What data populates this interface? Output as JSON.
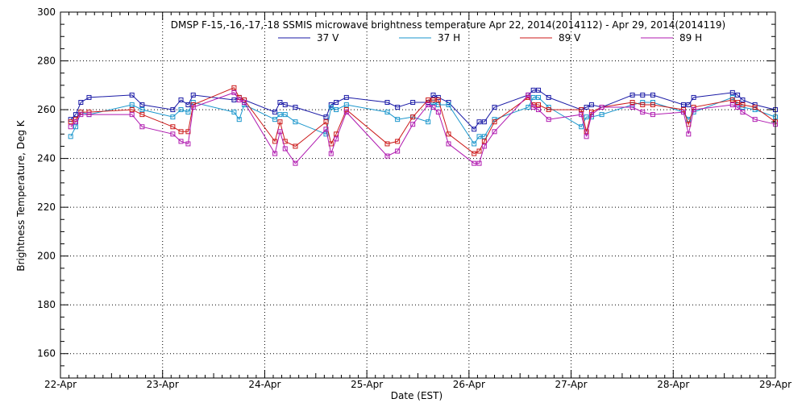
{
  "chart_data": {
    "type": "line",
    "title": "DMSP F-15,-16,-17,-18 SSMIS microwave brightness temperature Apr 22, 2014(2014112) - Apr 29, 2014(2014119)",
    "xlabel": "Date (EST)",
    "ylabel": "Brightness Temperature, Deg K",
    "xlim": [
      0,
      7
    ],
    "ylim": [
      150,
      300
    ],
    "x_tick_labels": [
      "22-Apr",
      "23-Apr",
      "24-Apr",
      "25-Apr",
      "26-Apr",
      "27-Apr",
      "28-Apr",
      "29-Apr"
    ],
    "y_ticks": [
      160,
      180,
      200,
      220,
      240,
      260,
      280,
      300
    ],
    "grid": true,
    "legend_position": "top",
    "series": [
      {
        "name": "37 V",
        "color": "#1a1aa6",
        "x": [
          0.1,
          0.15,
          0.2,
          0.28,
          0.7,
          0.8,
          1.1,
          1.18,
          1.25,
          1.3,
          1.7,
          1.75,
          1.8,
          2.1,
          2.15,
          2.2,
          2.3,
          2.6,
          2.65,
          2.7,
          2.8,
          3.2,
          3.3,
          3.45,
          3.6,
          3.65,
          3.7,
          3.8,
          4.05,
          4.1,
          4.15,
          4.25,
          4.58,
          4.63,
          4.68,
          4.78,
          5.1,
          5.15,
          5.2,
          5.3,
          5.6,
          5.7,
          5.8,
          6.1,
          6.15,
          6.2,
          6.58,
          6.63,
          6.68,
          6.8,
          7.0
        ],
        "values": [
          256,
          258,
          263,
          265,
          266,
          262,
          260,
          264,
          262,
          266,
          264,
          265,
          264,
          259,
          263,
          262,
          261,
          257,
          262,
          263,
          265,
          263,
          261,
          263,
          263,
          266,
          265,
          263,
          252,
          255,
          255,
          261,
          266,
          268,
          268,
          265,
          260,
          261,
          262,
          261,
          266,
          266,
          266,
          262,
          262,
          265,
          267,
          266,
          264,
          262,
          260
        ]
      },
      {
        "name": "37 H",
        "color": "#1a96cc",
        "x": [
          0.1,
          0.15,
          0.2,
          0.28,
          0.7,
          0.8,
          1.1,
          1.18,
          1.25,
          1.3,
          1.7,
          1.75,
          1.8,
          2.1,
          2.15,
          2.2,
          2.3,
          2.6,
          2.65,
          2.7,
          2.8,
          3.2,
          3.3,
          3.45,
          3.6,
          3.65,
          3.7,
          3.8,
          4.05,
          4.1,
          4.15,
          4.25,
          4.58,
          4.63,
          4.68,
          4.78,
          5.1,
          5.15,
          5.2,
          5.3,
          5.6,
          5.7,
          5.8,
          6.1,
          6.15,
          6.2,
          6.58,
          6.63,
          6.68,
          6.8,
          7.0
        ],
        "values": [
          249,
          253,
          259,
          258,
          262,
          260,
          257,
          260,
          259,
          263,
          259,
          256,
          262,
          256,
          258,
          258,
          255,
          250,
          261,
          260,
          262,
          259,
          256,
          257,
          255,
          263,
          262,
          262,
          246,
          249,
          249,
          256,
          261,
          265,
          265,
          261,
          253,
          257,
          257,
          258,
          262,
          263,
          263,
          259,
          256,
          259,
          265,
          262,
          261,
          260,
          257
        ]
      },
      {
        "name": "89 V",
        "color": "#cc1a1a",
        "x": [
          0.1,
          0.15,
          0.2,
          0.28,
          0.7,
          0.8,
          1.1,
          1.18,
          1.25,
          1.3,
          1.7,
          1.75,
          1.8,
          2.1,
          2.15,
          2.2,
          2.3,
          2.6,
          2.65,
          2.7,
          2.8,
          3.2,
          3.3,
          3.45,
          3.6,
          3.65,
          3.7,
          3.8,
          4.05,
          4.1,
          4.15,
          4.25,
          4.58,
          4.63,
          4.68,
          4.78,
          5.1,
          5.15,
          5.2,
          5.3,
          5.6,
          5.7,
          5.8,
          6.1,
          6.15,
          6.2,
          6.58,
          6.63,
          6.68,
          6.8,
          7.0
        ],
        "values": [
          255,
          256,
          259,
          259,
          260,
          258,
          253,
          251,
          251,
          262,
          269,
          265,
          264,
          247,
          255,
          247,
          245,
          255,
          246,
          250,
          260,
          246,
          247,
          257,
          264,
          264,
          264,
          250,
          242,
          243,
          247,
          255,
          265,
          262,
          262,
          260,
          260,
          251,
          259,
          261,
          263,
          262,
          262,
          260,
          254,
          261,
          264,
          263,
          262,
          261,
          255
        ]
      },
      {
        "name": "89 H",
        "color": "#b01ab0",
        "x": [
          0.1,
          0.15,
          0.2,
          0.28,
          0.7,
          0.8,
          1.1,
          1.18,
          1.25,
          1.3,
          1.7,
          1.75,
          1.8,
          2.1,
          2.15,
          2.2,
          2.3,
          2.6,
          2.65,
          2.7,
          2.8,
          3.2,
          3.3,
          3.45,
          3.6,
          3.65,
          3.7,
          3.8,
          4.05,
          4.1,
          4.15,
          4.25,
          4.58,
          4.63,
          4.68,
          4.78,
          5.1,
          5.15,
          5.2,
          5.3,
          5.6,
          5.7,
          5.8,
          6.1,
          6.15,
          6.2,
          6.58,
          6.63,
          6.68,
          6.8,
          7.0
        ],
        "values": [
          253,
          255,
          258,
          258,
          258,
          253,
          250,
          247,
          246,
          261,
          267,
          264,
          263,
          242,
          251,
          244,
          238,
          252,
          242,
          248,
          259,
          241,
          243,
          254,
          262,
          261,
          259,
          246,
          238,
          238,
          245,
          251,
          266,
          261,
          260,
          256,
          258,
          249,
          258,
          261,
          261,
          259,
          258,
          259,
          250,
          260,
          262,
          261,
          259,
          256,
          254
        ]
      }
    ]
  }
}
